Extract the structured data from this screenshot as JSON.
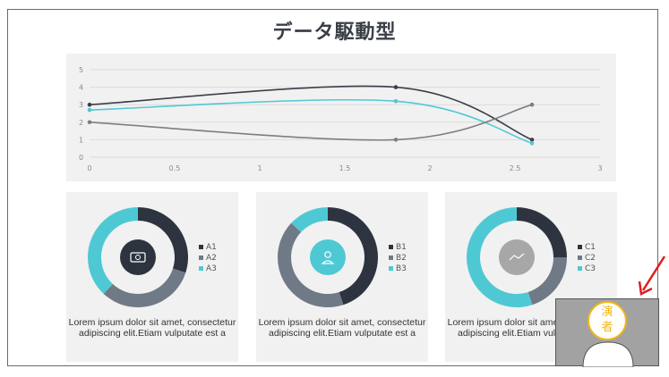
{
  "slide": {
    "title": "データ駆動型"
  },
  "chart_data": [
    {
      "type": "line",
      "title": "",
      "xlabel": "",
      "ylabel": "",
      "xlim": [
        0,
        3
      ],
      "ylim": [
        0,
        5
      ],
      "xticks": [
        "0",
        "0.5",
        "1",
        "1.5",
        "2",
        "2.5",
        "3"
      ],
      "yticks": [
        "0",
        "1",
        "2",
        "3",
        "4",
        "5"
      ],
      "grid": true,
      "series": [
        {
          "color": "#3b3f4a",
          "points": [
            [
              0,
              3
            ],
            [
              1.8,
              4
            ],
            [
              2.6,
              1
            ]
          ]
        },
        {
          "color": "#4ec9d4",
          "points": [
            [
              0,
              2.7
            ],
            [
              1.8,
              3.2
            ],
            [
              2.6,
              0.8
            ]
          ]
        },
        {
          "color": "#7a7f86",
          "points": [
            [
              0,
              2
            ],
            [
              1.8,
              1
            ],
            [
              2.6,
              3
            ]
          ]
        }
      ]
    },
    {
      "type": "pie",
      "variant": "donut",
      "labels": [
        "A1",
        "A2",
        "A3"
      ],
      "values": [
        0.3,
        0.32,
        0.38
      ],
      "colors": [
        "#2e3340",
        "#6f7a86",
        "#4ec9d4"
      ],
      "title": ""
    },
    {
      "type": "pie",
      "variant": "donut",
      "labels": [
        "B1",
        "B2",
        "B3"
      ],
      "values": [
        0.45,
        0.42,
        0.13
      ],
      "colors": [
        "#2e3340",
        "#6f7a86",
        "#4ec9d4"
      ],
      "title": ""
    },
    {
      "type": "pie",
      "variant": "donut",
      "labels": [
        "C1",
        "C2",
        "C3"
      ],
      "values": [
        0.25,
        0.2,
        0.55
      ],
      "colors": [
        "#2e3340",
        "#6f7a86",
        "#4ec9d4"
      ],
      "title": ""
    }
  ],
  "cards": [
    {
      "center_icon": "ticket-icon",
      "center_color": "#2e3340",
      "text": "Lorem ipsum dolor sit amet, consectetur adipiscing elit.Etiam vulputate est a"
    },
    {
      "center_icon": "worker-icon",
      "center_color": "#4ec9d4",
      "text": "Lorem ipsum dolor sit amet, consectetur adipiscing elit.Etiam vulputate est a"
    },
    {
      "center_icon": "trend-line-icon",
      "center_color": "#a7a7a7",
      "text": "Lorem ipsum dolor sit amet, consectetur adipiscing elit.Etiam vulputate est a"
    }
  ],
  "speaker": {
    "label_line1": "演",
    "label_line2": "者",
    "label_color": "#f1b617"
  },
  "pointer": {
    "color": "#e21c1c"
  }
}
